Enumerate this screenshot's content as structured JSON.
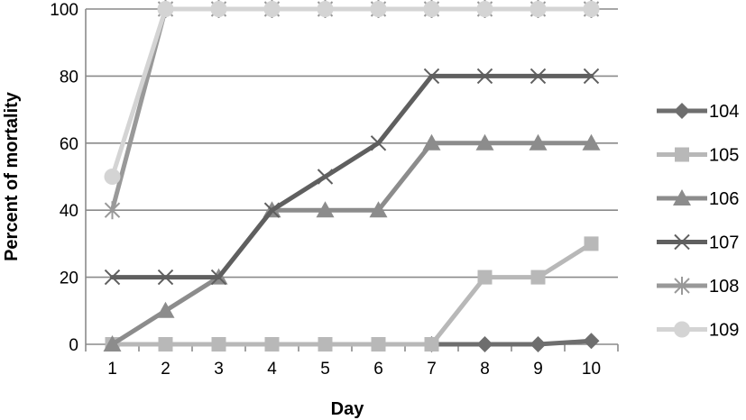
{
  "chart_data": {
    "type": "line",
    "xlabel": "Day",
    "ylabel": "Percent of mortality",
    "x": [
      1,
      2,
      3,
      4,
      5,
      6,
      7,
      8,
      9,
      10
    ],
    "ylim": [
      0,
      100
    ],
    "yticks": [
      0,
      20,
      40,
      60,
      80,
      100
    ],
    "grid": "horizontal",
    "legend": "right",
    "series": [
      {
        "name": "104",
        "x": [
          7,
          8,
          9,
          10
        ],
        "values": [
          0,
          0,
          0,
          1
        ],
        "color": "#6e6e6e",
        "marker": "diamond"
      },
      {
        "name": "105",
        "x": [
          1,
          2,
          3,
          4,
          5,
          6,
          7,
          8,
          9,
          10
        ],
        "values": [
          0,
          0,
          0,
          0,
          0,
          0,
          0,
          20,
          20,
          30
        ],
        "color": "#b8b8b8",
        "marker": "square"
      },
      {
        "name": "106",
        "x": [
          1,
          2,
          3,
          4,
          5,
          6,
          7,
          8,
          9,
          10
        ],
        "values": [
          0,
          10,
          20,
          40,
          40,
          40,
          60,
          60,
          60,
          60
        ],
        "color": "#8c8c8c",
        "marker": "triangle"
      },
      {
        "name": "107",
        "x": [
          1,
          2,
          3,
          4,
          5,
          6,
          7,
          8,
          9,
          10
        ],
        "values": [
          20,
          20,
          20,
          40,
          50,
          60,
          80,
          80,
          80,
          80
        ],
        "color": "#5f5f5f",
        "marker": "x"
      },
      {
        "name": "108",
        "x": [
          1,
          2,
          3,
          4,
          5,
          6,
          7,
          8,
          9,
          10
        ],
        "values": [
          40,
          100,
          100,
          100,
          100,
          100,
          100,
          100,
          100,
          100
        ],
        "color": "#999999",
        "marker": "star"
      },
      {
        "name": "109",
        "x": [
          1,
          2,
          3,
          4,
          5,
          6,
          7,
          8,
          9,
          10
        ],
        "values": [
          50,
          100,
          100,
          100,
          100,
          100,
          100,
          100,
          100,
          100
        ],
        "color": "#d4d4d4",
        "marker": "circle"
      }
    ]
  }
}
